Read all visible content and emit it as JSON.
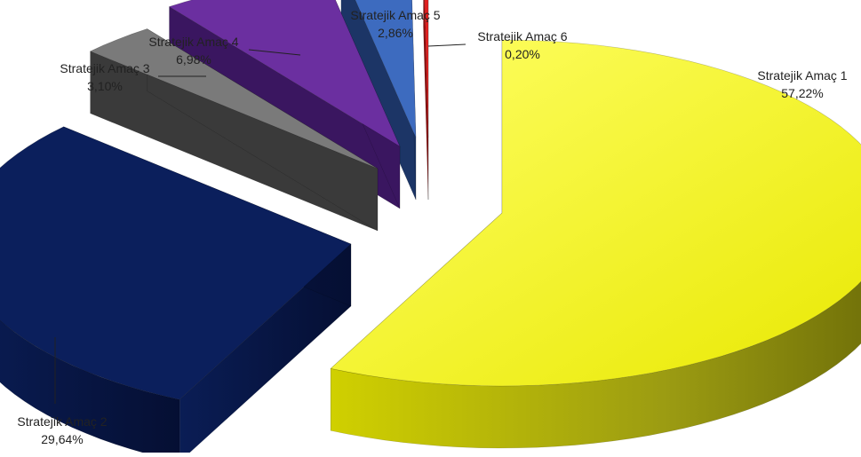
{
  "chart_data": {
    "type": "pie",
    "variant": "3d-exploded",
    "title": "",
    "categories": [
      "Stratejik Amaç 1",
      "Stratejik Amaç 2",
      "Stratejik Amaç 3",
      "Stratejik Amaç 4",
      "Stratejik Amaç 5",
      "Stratejik Amaç 6"
    ],
    "values": [
      57.22,
      29.64,
      3.1,
      6.98,
      2.86,
      0.2
    ],
    "value_labels": [
      "57,22%",
      "29,64%",
      "3,10%",
      "6,98%",
      "2,86%",
      "0,20%"
    ],
    "colors": [
      "#ffff00",
      "#0b1f5c",
      "#7a7a7a",
      "#6b2fa0",
      "#3d6bbf",
      "#e02020"
    ],
    "side_colors": [
      "#9a9a10",
      "#07143d",
      "#3a3a3a",
      "#3a1660",
      "#1c3566",
      "#8a1010"
    ],
    "legend": "none"
  }
}
